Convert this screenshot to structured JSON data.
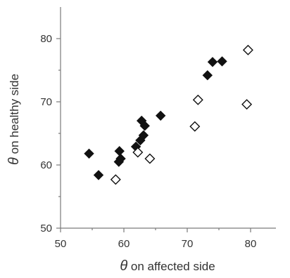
{
  "chart_data": {
    "type": "scatter",
    "title": "",
    "xlabel": "θ on affected side",
    "ylabel": "θ on healthy side",
    "xlim": [
      50,
      84
    ],
    "ylim": [
      50,
      85
    ],
    "xticks": [
      50,
      60,
      70,
      80
    ],
    "yticks": [
      50,
      60,
      70,
      80
    ],
    "grid": false,
    "legend": "none",
    "series": [
      {
        "marker": "filled-diamond",
        "color": "#111111",
        "points": [
          {
            "x": 54.5,
            "y": 61.8
          },
          {
            "x": 56.0,
            "y": 58.4
          },
          {
            "x": 59.2,
            "y": 60.5
          },
          {
            "x": 59.3,
            "y": 62.2
          },
          {
            "x": 59.5,
            "y": 61.0
          },
          {
            "x": 61.9,
            "y": 62.9
          },
          {
            "x": 62.6,
            "y": 63.9
          },
          {
            "x": 62.8,
            "y": 67.0
          },
          {
            "x": 63.1,
            "y": 64.7
          },
          {
            "x": 63.3,
            "y": 66.2
          },
          {
            "x": 65.8,
            "y": 67.8
          },
          {
            "x": 73.2,
            "y": 74.2
          },
          {
            "x": 74.0,
            "y": 76.3
          },
          {
            "x": 75.5,
            "y": 76.4
          }
        ]
      },
      {
        "marker": "open-diamond",
        "color": "#111111",
        "points": [
          {
            "x": 58.7,
            "y": 57.7
          },
          {
            "x": 62.2,
            "y": 62.0
          },
          {
            "x": 64.1,
            "y": 61.0
          },
          {
            "x": 71.2,
            "y": 66.1
          },
          {
            "x": 71.7,
            "y": 70.3
          },
          {
            "x": 79.4,
            "y": 69.6
          },
          {
            "x": 79.6,
            "y": 78.2
          }
        ]
      }
    ]
  }
}
